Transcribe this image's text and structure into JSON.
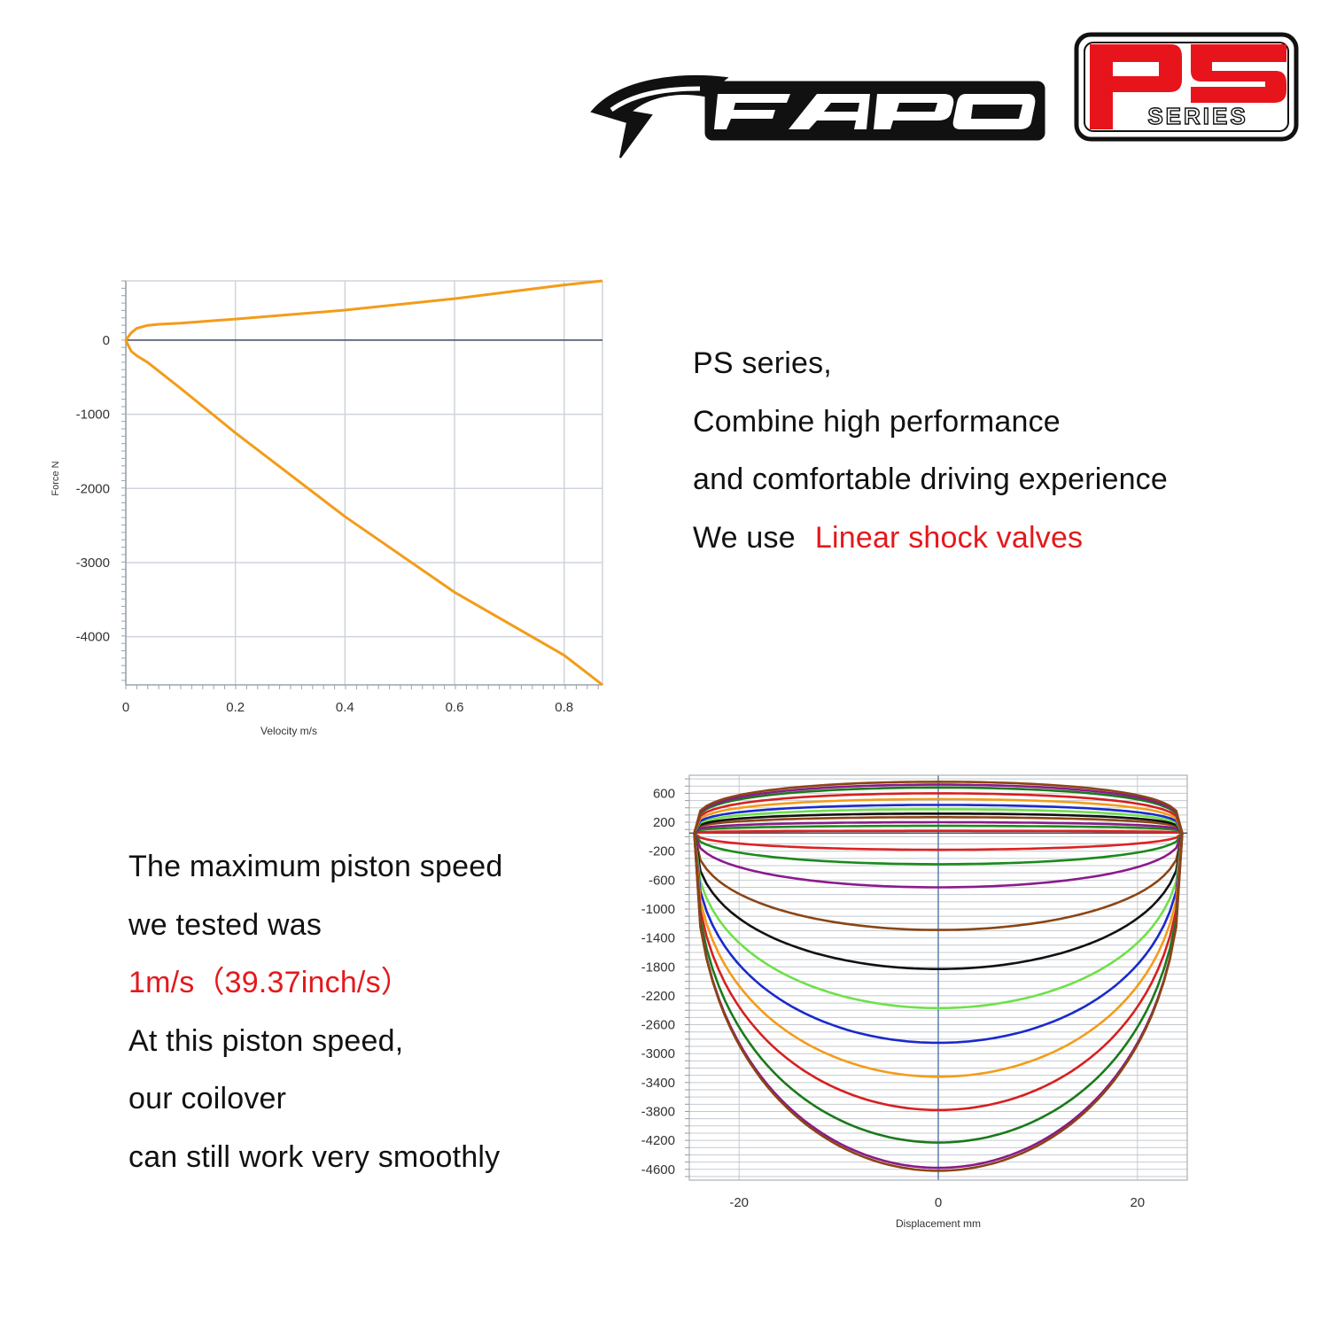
{
  "colors": {
    "accent_red": "#e3191c",
    "brand_red": "#e8141b",
    "curve_orange": "#f39c1a"
  },
  "logo": {
    "wordmark": "FAPO",
    "badge_main": "PS",
    "badge_sub": "SERIES"
  },
  "intro": {
    "line1": "PS series,",
    "line2": "Combine high performance",
    "line3": "and comfortable driving experience",
    "line4_prefix": "We use",
    "line4_highlight": "Linear shock valves"
  },
  "speed": {
    "line1": "The maximum piston speed",
    "line2": "we tested was",
    "line3": "1m/s（39.37inch/s）",
    "line4": "At this piston speed,",
    "line5": "our coilover",
    "line6": "can still work very smoothly"
  },
  "chart_data": [
    {
      "type": "line",
      "xlabel": "Velocity m/s",
      "ylabel": "Force N",
      "xlim": [
        0,
        0.87
      ],
      "ylim": [
        -4650,
        800
      ],
      "x_ticks": [
        "0",
        "0.2",
        "0.4",
        "0.6",
        "0.8"
      ],
      "y_ticks": [
        "0",
        "-1000",
        "-2000",
        "-3000",
        "-4000"
      ],
      "x_tick_values": [
        0,
        0.2,
        0.4,
        0.6,
        0.8
      ],
      "y_tick_values": [
        0,
        -1000,
        -2000,
        -3000,
        -4000
      ],
      "grid": true,
      "series": [
        {
          "color": "#f39c1a",
          "x": [
            0,
            0.01,
            0.02,
            0.04,
            0.06,
            0.1,
            0.2,
            0.4,
            0.6,
            0.8,
            0.87
          ],
          "y": [
            0,
            100,
            160,
            200,
            215,
            230,
            285,
            405,
            560,
            745,
            800
          ]
        },
        {
          "color": "#f39c1a",
          "x": [
            0,
            0.005,
            0.01,
            0.02,
            0.04,
            0.1,
            0.2,
            0.4,
            0.6,
            0.8,
            0.87
          ],
          "y": [
            0,
            -80,
            -150,
            -210,
            -300,
            -650,
            -1250,
            -2380,
            -3400,
            -4250,
            -4650
          ]
        }
      ]
    },
    {
      "type": "line",
      "xlabel": "Displacement mm",
      "ylabel": "",
      "xlim": [
        -25,
        25
      ],
      "ylim": [
        -4750,
        850
      ],
      "x_ticks": [
        "-20",
        "0",
        "20"
      ],
      "y_ticks": [
        "600",
        "200",
        "-200",
        "-600",
        "-1000",
        "-1400",
        "-1800",
        "-2200",
        "-2600",
        "-3000",
        "-3400",
        "-3800",
        "-4200",
        "-4600"
      ],
      "x_tick_values": [
        -20,
        0,
        20
      ],
      "y_tick_values": [
        600,
        200,
        -200,
        -600,
        -1000,
        -1400,
        -1800,
        -2200,
        -2600,
        -3000,
        -3400,
        -3800,
        -4200,
        -4600
      ],
      "grid": true,
      "half_stroke_mm": 24.5,
      "series": [
        {
          "color": "#e02020",
          "peak_rebound": 80,
          "peak_compression": -180
        },
        {
          "color": "#1a8a1a",
          "peak_rebound": 150,
          "peak_compression": -380
        },
        {
          "color": "#8b1a8b",
          "peak_rebound": 200,
          "peak_compression": -700
        },
        {
          "color": "#8b4513",
          "peak_rebound": 270,
          "peak_compression": -1290
        },
        {
          "color": "#111111",
          "peak_rebound": 320,
          "peak_compression": -1830
        },
        {
          "color": "#6fe04a",
          "peak_rebound": 380,
          "peak_compression": -2370
        },
        {
          "color": "#1a2acc",
          "peak_rebound": 440,
          "peak_compression": -2850
        },
        {
          "color": "#f39c1a",
          "peak_rebound": 520,
          "peak_compression": -3320
        },
        {
          "color": "#d62020",
          "peak_rebound": 600,
          "peak_compression": -3780
        },
        {
          "color": "#1a7a1a",
          "peak_rebound": 680,
          "peak_compression": -4230
        },
        {
          "color": "#8b1a8b",
          "peak_rebound": 720,
          "peak_compression": -4580
        },
        {
          "color": "#8b4513",
          "peak_rebound": 760,
          "peak_compression": -4620
        }
      ]
    }
  ]
}
